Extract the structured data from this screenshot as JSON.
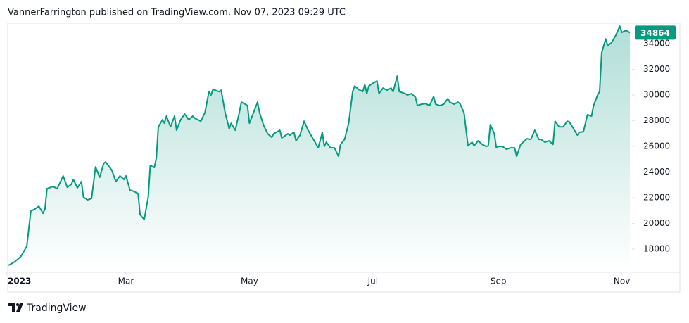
{
  "chart_data": {
    "type": "area",
    "subtitle": "VannerFarrington published on TradingView.com, Nov 07, 2023 09:29 UTC",
    "source": "TradingView",
    "color": "#089981",
    "x": [
      1,
      4,
      7,
      10,
      12,
      14,
      16,
      18,
      19,
      20,
      23,
      25,
      26,
      28,
      30,
      32,
      33,
      35,
      37,
      38,
      40,
      42,
      44,
      46,
      48,
      49,
      51,
      52,
      54,
      56,
      58,
      59,
      61,
      63,
      65,
      66,
      68,
      70,
      71,
      73,
      74,
      75,
      77,
      78,
      79,
      81,
      83,
      84,
      86,
      88,
      90,
      92,
      93,
      96,
      98,
      100,
      101,
      102,
      105,
      106,
      108,
      110,
      111,
      113,
      115,
      116,
      118,
      119,
      120,
      122,
      124,
      125,
      127,
      129,
      131,
      132,
      135,
      136,
      139,
      140,
      142,
      143,
      145,
      147,
      149,
      150,
      152,
      154,
      156,
      157,
      158,
      160,
      162,
      164,
      165,
      167,
      169,
      171,
      172,
      174,
      176,
      177,
      178,
      179,
      181,
      183,
      184,
      186,
      188,
      190,
      191,
      193,
      194,
      197,
      198,
      200,
      202,
      203,
      205,
      207,
      209,
      211,
      212,
      214,
      216,
      218,
      219,
      221,
      223,
      224,
      226,
      228,
      230,
      231,
      233,
      235,
      237,
      238,
      239,
      241,
      242,
      243,
      245,
      247,
      249,
      251,
      252,
      254,
      256,
      257,
      259,
      261,
      263,
      264,
      266,
      268,
      270,
      271,
      273,
      275,
      277,
      278,
      280,
      282,
      283,
      285,
      287,
      289,
      290,
      292,
      293,
      294,
      296,
      297,
      299,
      301,
      303,
      304,
      306,
      308
    ],
    "values": [
      16740,
      17010,
      17400,
      18220,
      20960,
      21120,
      21340,
      20790,
      21120,
      22710,
      22880,
      22710,
      23040,
      23700,
      22820,
      23040,
      23420,
      22770,
      23260,
      22050,
      21830,
      21940,
      24410,
      23590,
      24680,
      24790,
      24360,
      24140,
      23260,
      23700,
      23420,
      23700,
      22600,
      22490,
      22330,
      20680,
      20300,
      22050,
      24520,
      24360,
      25070,
      27530,
      28080,
      27810,
      28360,
      27530,
      28360,
      27260,
      28080,
      28520,
      28080,
      28360,
      28190,
      27970,
      28630,
      30270,
      30000,
      30440,
      30270,
      30380,
      28630,
      27370,
      27810,
      27260,
      28630,
      29450,
      29290,
      29180,
      27810,
      28630,
      29450,
      28630,
      27640,
      26990,
      26710,
      26990,
      27260,
      26660,
      26990,
      26880,
      27100,
      26440,
      26880,
      27970,
      27260,
      26990,
      26440,
      25890,
      27100,
      26000,
      26330,
      25890,
      25890,
      25230,
      26160,
      26550,
      27810,
      30270,
      30710,
      30440,
      30270,
      30820,
      30110,
      30710,
      30930,
      31100,
      30110,
      30550,
      30380,
      30550,
      30270,
      31480,
      30270,
      30110,
      30000,
      30110,
      29840,
      29180,
      29290,
      29340,
      29180,
      29890,
      29290,
      29180,
      29290,
      29730,
      29450,
      29290,
      29450,
      29340,
      28630,
      26050,
      26330,
      26050,
      26440,
      26160,
      26000,
      26050,
      27700,
      26990,
      25890,
      26000,
      26000,
      25780,
      25890,
      25890,
      25230,
      26160,
      26440,
      26600,
      26550,
      27260,
      26550,
      26550,
      26330,
      26440,
      26160,
      27970,
      27530,
      27530,
      27970,
      27920,
      27420,
      26880,
      27100,
      27150,
      28470,
      28360,
      29180,
      30000,
      30270,
      33290,
      34380,
      33840,
      34110,
      34660,
      35370,
      34880,
      35040,
      34864
    ],
    "xlim": [
      0,
      309
    ],
    "xticks": [
      {
        "value": 0,
        "label": "2023"
      },
      {
        "value": 59,
        "label": "Mar"
      },
      {
        "value": 120,
        "label": "May"
      },
      {
        "value": 181,
        "label": "Jul"
      },
      {
        "value": 243,
        "label": "Sep"
      },
      {
        "value": 304,
        "label": "Nov"
      }
    ],
    "ylim": [
      16300,
      35600
    ],
    "yticks": [
      18000,
      20000,
      22000,
      24000,
      26000,
      28000,
      30000,
      32000,
      34000
    ],
    "grid": false
  }
}
